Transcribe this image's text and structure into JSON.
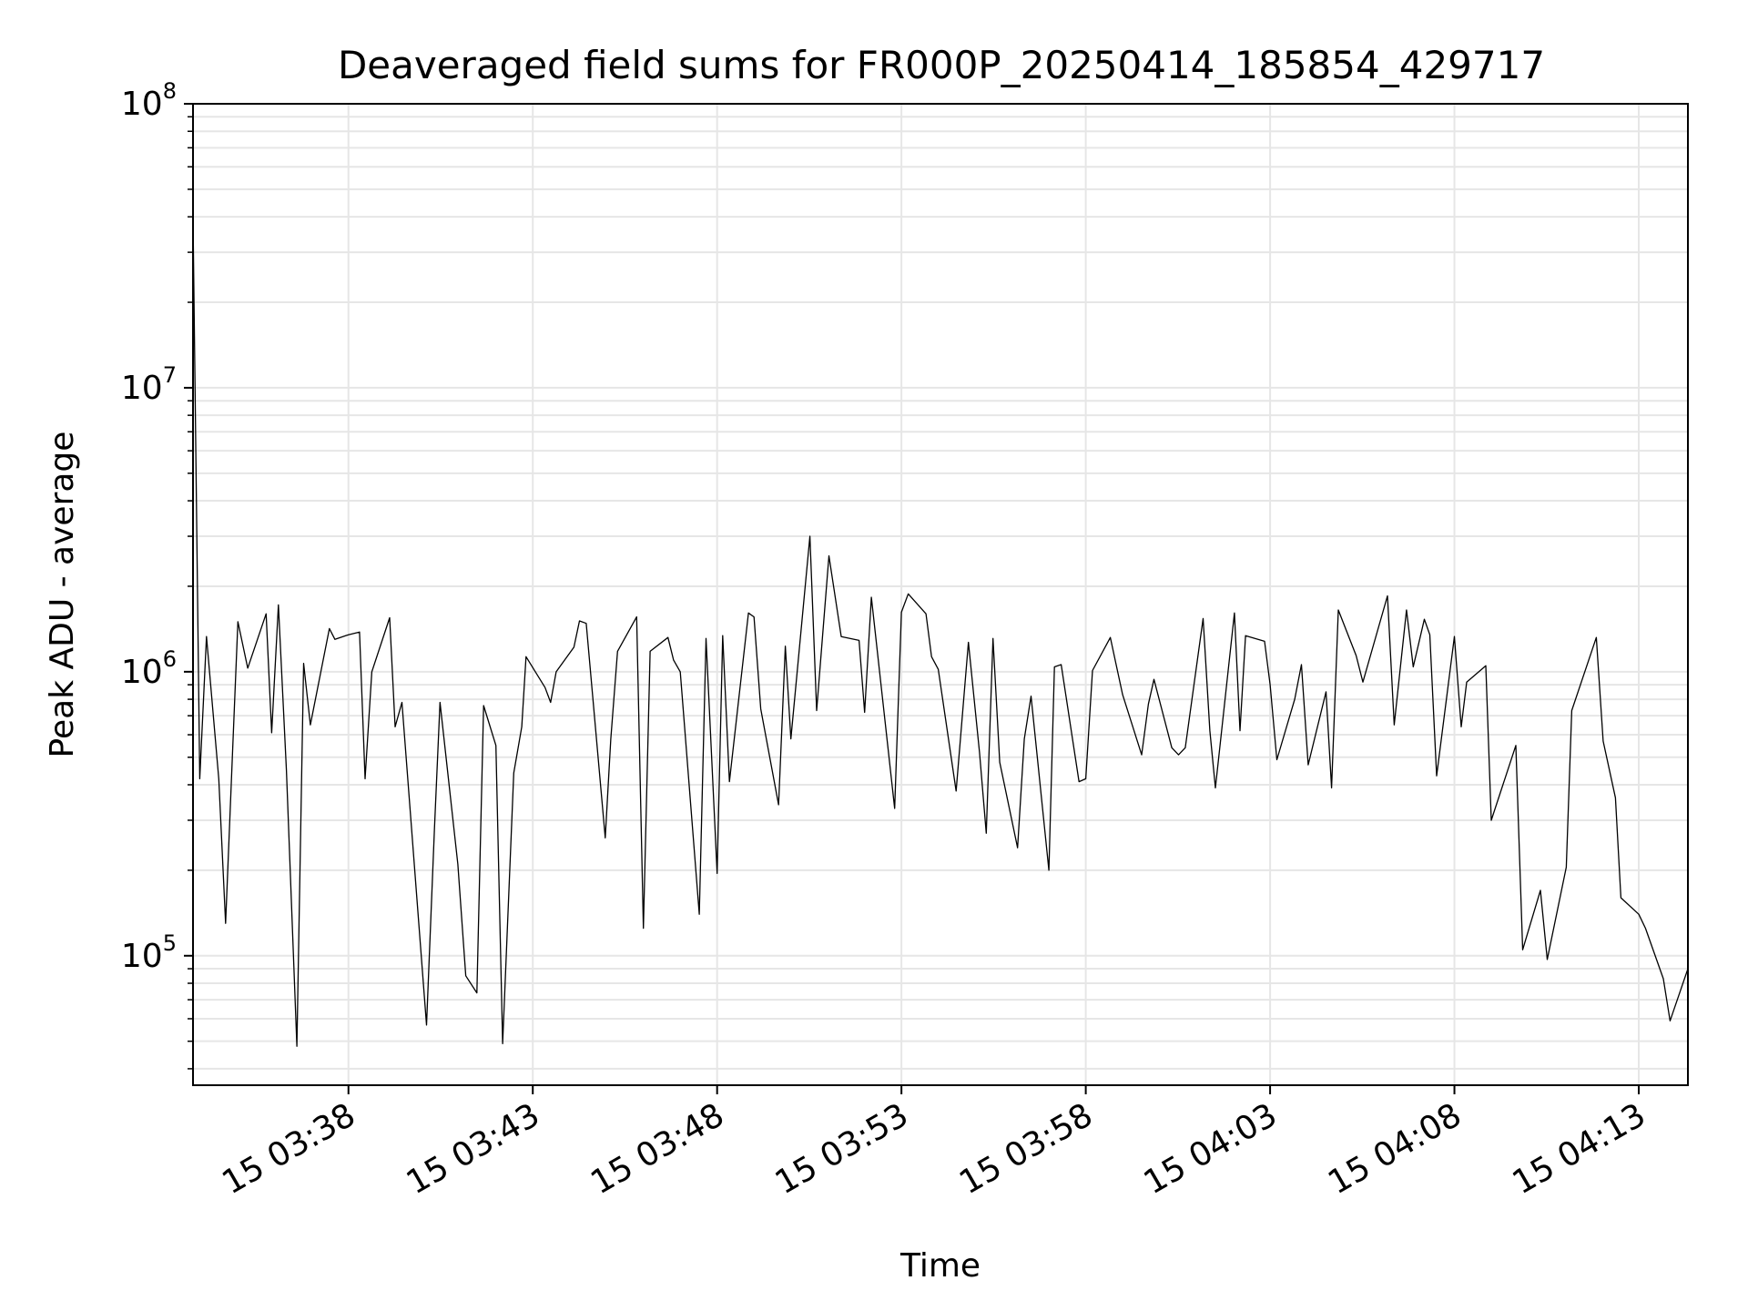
{
  "chart_data": {
    "type": "line",
    "title": "Deaveraged field sums for FR000P_20250414_185854_429717",
    "xlabel": "Time",
    "ylabel": "Peak ADU - average",
    "yscale": "log",
    "ylim": [
      35000,
      100000000
    ],
    "xlim": [
      "03:33:47",
      "04:14:20"
    ],
    "grid": true,
    "x_ticks": [
      {
        "label": "15 03:38",
        "t": "03:38:00"
      },
      {
        "label": "15 03:43",
        "t": "03:43:00"
      },
      {
        "label": "15 03:48",
        "t": "03:48:00"
      },
      {
        "label": "15 03:53",
        "t": "03:53:00"
      },
      {
        "label": "15 03:58",
        "t": "03:58:00"
      },
      {
        "label": "15 04:03",
        "t": "04:03:00"
      },
      {
        "label": "15 04:08",
        "t": "04:08:00"
      },
      {
        "label": "15 04:13",
        "t": "04:13:00"
      }
    ],
    "y_ticks": [
      {
        "base": "10",
        "exp": "5",
        "value": 100000
      },
      {
        "base": "10",
        "exp": "6",
        "value": 1000000
      },
      {
        "base": "10",
        "exp": "7",
        "value": 10000000
      },
      {
        "base": "10",
        "exp": "8",
        "value": 100000000
      }
    ],
    "line_color": "#000000",
    "grid_color": "#e6e6e6",
    "series": [
      {
        "points": [
          [
            "03:33:47",
            40000000
          ],
          [
            "03:33:58",
            420000
          ],
          [
            "03:34:09",
            1330000
          ],
          [
            "03:34:29",
            420000
          ],
          [
            "03:34:40",
            130000
          ],
          [
            "03:34:51",
            500000
          ],
          [
            "03:35:00",
            1500000
          ],
          [
            "03:35:16",
            1030000
          ],
          [
            "03:35:46",
            1600000
          ],
          [
            "03:35:55",
            610000
          ],
          [
            "03:36:06",
            1720000
          ],
          [
            "03:36:19",
            450000
          ],
          [
            "03:36:36",
            48000
          ],
          [
            "03:36:47",
            1070000
          ],
          [
            "03:36:58",
            650000
          ],
          [
            "03:37:29",
            1420000
          ],
          [
            "03:37:38",
            1300000
          ],
          [
            "03:38:00",
            1350000
          ],
          [
            "03:38:18",
            1380000
          ],
          [
            "03:38:27",
            420000
          ],
          [
            "03:38:38",
            1000000
          ],
          [
            "03:39:07",
            1550000
          ],
          [
            "03:39:16",
            640000
          ],
          [
            "03:39:27",
            780000
          ],
          [
            "03:40:07",
            57000
          ],
          [
            "03:40:20",
            280000
          ],
          [
            "03:40:29",
            780000
          ],
          [
            "03:40:58",
            210000
          ],
          [
            "03:41:11",
            85000
          ],
          [
            "03:41:29",
            74000
          ],
          [
            "03:41:40",
            760000
          ],
          [
            "03:42:00",
            550000
          ],
          [
            "03:42:11",
            49000
          ],
          [
            "03:42:29",
            440000
          ],
          [
            "03:42:42",
            640000
          ],
          [
            "03:42:49",
            1130000
          ],
          [
            "03:43:20",
            880000
          ],
          [
            "03:43:29",
            780000
          ],
          [
            "03:43:38",
            1000000
          ],
          [
            "03:44:07",
            1220000
          ],
          [
            "03:44:16",
            1510000
          ],
          [
            "03:44:27",
            1480000
          ],
          [
            "03:44:58",
            260000
          ],
          [
            "03:45:07",
            580000
          ],
          [
            "03:45:18",
            1180000
          ],
          [
            "03:45:49",
            1560000
          ],
          [
            "03:46:00",
            125000
          ],
          [
            "03:46:11",
            1180000
          ],
          [
            "03:46:40",
            1320000
          ],
          [
            "03:46:49",
            1100000
          ],
          [
            "03:47:00",
            1000000
          ],
          [
            "03:47:31",
            140000
          ],
          [
            "03:47:42",
            1310000
          ],
          [
            "03:48:00",
            195000
          ],
          [
            "03:48:09",
            1340000
          ],
          [
            "03:48:20",
            410000
          ],
          [
            "03:48:51",
            1610000
          ],
          [
            "03:49:00",
            1560000
          ],
          [
            "03:49:11",
            740000
          ],
          [
            "03:49:40",
            340000
          ],
          [
            "03:49:51",
            1230000
          ],
          [
            "03:50:00",
            580000
          ],
          [
            "03:50:31",
            3000000
          ],
          [
            "03:50:42",
            730000
          ],
          [
            "03:51:02",
            2560000
          ],
          [
            "03:51:22",
            1330000
          ],
          [
            "03:51:51",
            1290000
          ],
          [
            "03:52:00",
            720000
          ],
          [
            "03:52:11",
            1830000
          ],
          [
            "03:52:49",
            330000
          ],
          [
            "03:53:00",
            1620000
          ],
          [
            "03:53:11",
            1880000
          ],
          [
            "03:53:40",
            1600000
          ],
          [
            "03:53:49",
            1130000
          ],
          [
            "03:54:00",
            1020000
          ],
          [
            "03:54:29",
            380000
          ],
          [
            "03:54:49",
            1270000
          ],
          [
            "03:55:07",
            520000
          ],
          [
            "03:55:18",
            270000
          ],
          [
            "03:55:29",
            1310000
          ],
          [
            "03:55:40",
            480000
          ],
          [
            "03:56:09",
            240000
          ],
          [
            "03:56:20",
            580000
          ],
          [
            "03:56:31",
            820000
          ],
          [
            "03:57:00",
            200000
          ],
          [
            "03:57:09",
            1040000
          ],
          [
            "03:57:20",
            1060000
          ],
          [
            "03:57:49",
            410000
          ],
          [
            "03:58:00",
            420000
          ],
          [
            "03:58:11",
            1010000
          ],
          [
            "03:58:40",
            1320000
          ],
          [
            "03:58:49",
            1070000
          ],
          [
            "03:59:00",
            830000
          ],
          [
            "03:59:31",
            510000
          ],
          [
            "03:59:42",
            770000
          ],
          [
            "03:59:51",
            940000
          ],
          [
            "04:00:20",
            540000
          ],
          [
            "04:00:31",
            510000
          ],
          [
            "04:00:42",
            540000
          ],
          [
            "04:01:11",
            1540000
          ],
          [
            "04:01:22",
            620000
          ],
          [
            "04:01:31",
            390000
          ],
          [
            "04:02:02",
            1610000
          ],
          [
            "04:02:11",
            620000
          ],
          [
            "04:02:20",
            1340000
          ],
          [
            "04:02:51",
            1280000
          ],
          [
            "04:03:00",
            900000
          ],
          [
            "04:03:11",
            490000
          ],
          [
            "04:03:40",
            800000
          ],
          [
            "04:03:51",
            1060000
          ],
          [
            "04:04:02",
            470000
          ],
          [
            "04:04:31",
            850000
          ],
          [
            "04:04:40",
            390000
          ],
          [
            "04:04:51",
            1650000
          ],
          [
            "04:05:20",
            1140000
          ],
          [
            "04:05:31",
            920000
          ],
          [
            "04:06:11",
            1850000
          ],
          [
            "04:06:22",
            650000
          ],
          [
            "04:06:42",
            1650000
          ],
          [
            "04:06:53",
            1040000
          ],
          [
            "04:07:11",
            1530000
          ],
          [
            "04:07:20",
            1350000
          ],
          [
            "04:07:31",
            430000
          ],
          [
            "04:08:00",
            1330000
          ],
          [
            "04:08:11",
            640000
          ],
          [
            "04:08:20",
            920000
          ],
          [
            "04:08:51",
            1050000
          ],
          [
            "04:09:00",
            300000
          ],
          [
            "04:09:40",
            550000
          ],
          [
            "04:09:51",
            105000
          ],
          [
            "04:10:20",
            170000
          ],
          [
            "04:10:31",
            97000
          ],
          [
            "04:11:02",
            205000
          ],
          [
            "04:11:11",
            730000
          ],
          [
            "04:11:51",
            1320000
          ],
          [
            "04:12:02",
            570000
          ],
          [
            "04:12:22",
            360000
          ],
          [
            "04:12:31",
            160000
          ],
          [
            "04:13:00",
            140000
          ],
          [
            "04:13:11",
            125000
          ],
          [
            "04:13:40",
            83000
          ],
          [
            "04:13:51",
            59000
          ],
          [
            "04:14:20",
            90000
          ]
        ]
      }
    ]
  }
}
